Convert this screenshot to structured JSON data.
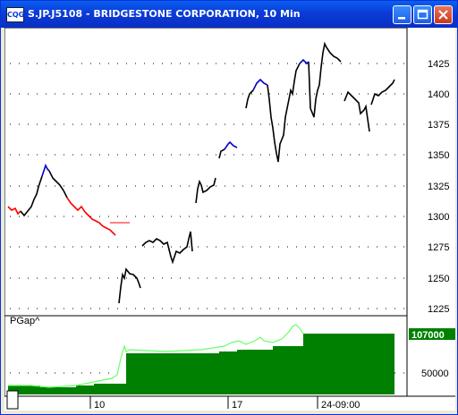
{
  "window": {
    "icon_text": "CQG",
    "title": "S.JP.J5108 - BRIDGESTONE CORPORATION, 10 Min"
  },
  "price_axis": {
    "ticks": [
      "1425",
      "1400",
      "1375",
      "1350",
      "1325",
      "1300",
      "1275",
      "1250",
      "1225"
    ]
  },
  "volume_axis": {
    "ticks": [
      "50000"
    ],
    "last_value": "107000"
  },
  "study_label": "PGap^",
  "time_axis": {
    "labels": [
      "10",
      "17",
      "24-09:00"
    ]
  },
  "colors": {
    "up": "#0000cc",
    "down": "#ff0000",
    "neutral": "#000000",
    "volume_fill": "#008000",
    "volume_line": "#66ff66"
  }
}
